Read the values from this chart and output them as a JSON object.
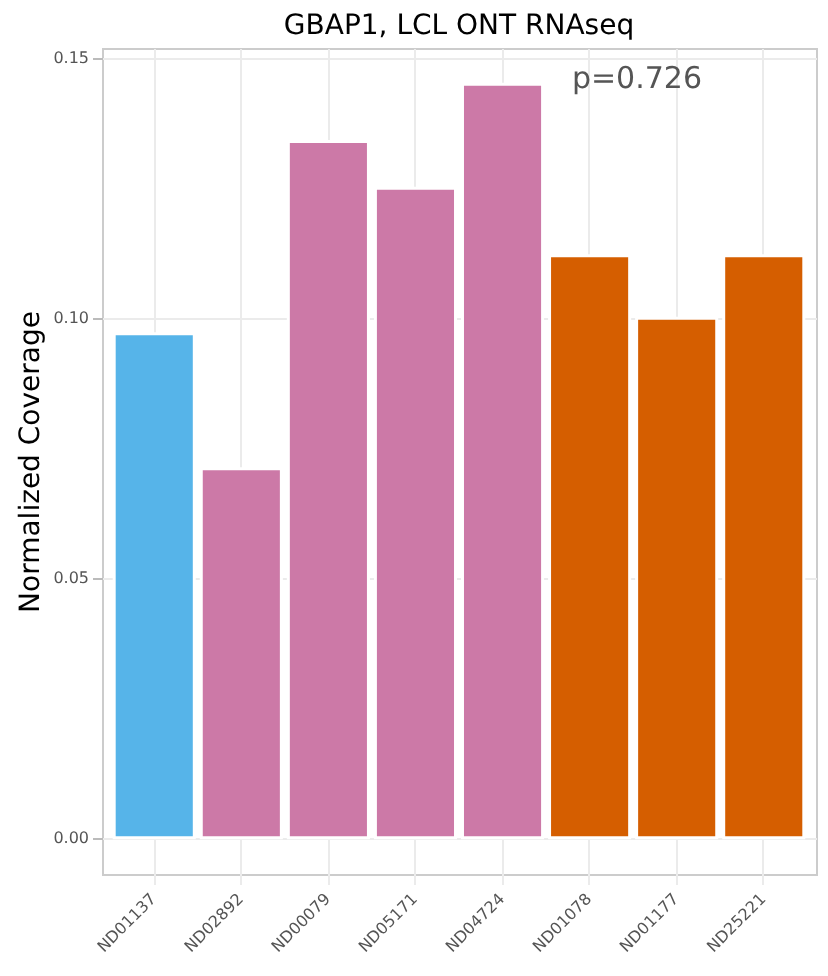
{
  "chart_data": {
    "type": "bar",
    "title": "GBAP1, LCL ONT RNAseq",
    "ylabel": "Normalized Coverage",
    "categories": [
      "ND01137",
      "ND02892",
      "ND00079",
      "ND05171",
      "ND04724",
      "ND01078",
      "ND01177",
      "ND25221"
    ],
    "values": [
      0.097,
      0.071,
      0.134,
      0.125,
      0.145,
      0.112,
      0.1,
      0.112
    ],
    "colors": [
      "#56b4e9",
      "#cc79a7",
      "#cc79a7",
      "#cc79a7",
      "#cc79a7",
      "#d55e00",
      "#d55e00",
      "#d55e00"
    ],
    "ylim": [
      -0.007,
      0.152
    ],
    "yticks": [
      {
        "value": 0,
        "label": "0.00"
      },
      {
        "value": 0.05,
        "label": "0.05"
      },
      {
        "value": 0.1,
        "label": "0.10"
      },
      {
        "value": 0.15,
        "label": "0.15"
      }
    ],
    "grid": true,
    "annotations": [
      "p=0.726"
    ]
  }
}
